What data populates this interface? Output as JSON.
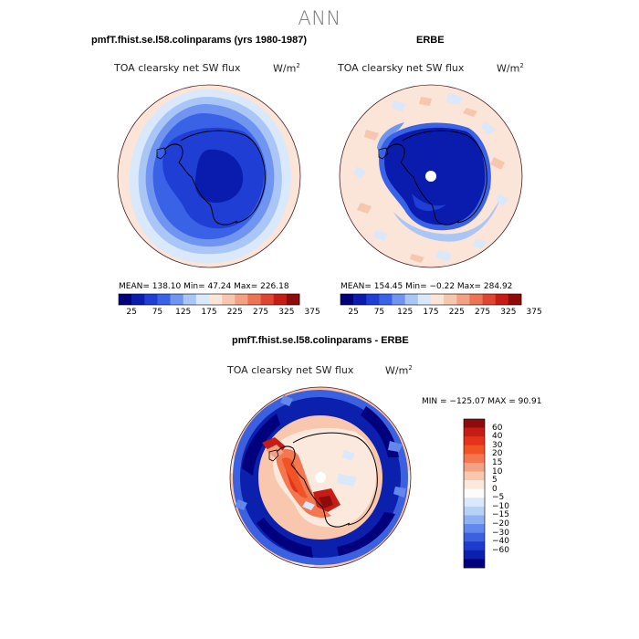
{
  "figure": {
    "title": "ANN"
  },
  "panels": [
    {
      "id": "model",
      "title": "pmfT.fhist.se.l58.colinparams (yrs 1980-1987)",
      "variable": "TOA clearsky net SW flux",
      "unit_base": "W/m",
      "unit_exp": "2",
      "stats_text": "MEAN= 138.10  Min=  47.24  Max= 226.18"
    },
    {
      "id": "obs",
      "title": "ERBE",
      "variable": "TOA clearsky net SW flux",
      "unit_base": "W/m",
      "unit_exp": "2",
      "stats_text": "MEAN= 154.45  Min=  −0.22  Max= 284.92"
    },
    {
      "id": "diff",
      "title": "pmfT.fhist.se.l58.colinparams - ERBE",
      "variable": "TOA clearsky net SW flux",
      "unit_base": "W/m",
      "unit_exp": "2",
      "stats_text": "MIN = −125.07  MAX =  90.91"
    }
  ],
  "colorbar_main": {
    "colors": [
      "#00007d",
      "#0a1cae",
      "#1f3fd4",
      "#3a62e6",
      "#6f95f0",
      "#a9c6f6",
      "#d9e8fa",
      "#fbe5d8",
      "#f7c7ad",
      "#f3a083",
      "#ec7356",
      "#df4530",
      "#c51d15",
      "#8f0a0a"
    ],
    "tick_labels": [
      "25",
      "75",
      "125",
      "175",
      "225",
      "275",
      "325",
      "375"
    ]
  },
  "colorbar_diff": {
    "colors_top_to_bottom": [
      "#8f0a0a",
      "#c51d15",
      "#e3341b",
      "#ef5326",
      "#f47750",
      "#f4a084",
      "#f8c7ae",
      "#fbe9dd",
      "#fdfcfb",
      "#d9e8fa",
      "#b7d2f7",
      "#8fb1f2",
      "#6388eb",
      "#3b61e1",
      "#1d3bcc",
      "#0b20ad",
      "#00007d"
    ],
    "tick_labels_top_to_bottom": [
      "60",
      "40",
      "30",
      "20",
      "15",
      "10",
      "5",
      "0",
      "−5",
      "−10",
      "−15",
      "−20",
      "−30",
      "−40",
      "−60"
    ]
  }
}
